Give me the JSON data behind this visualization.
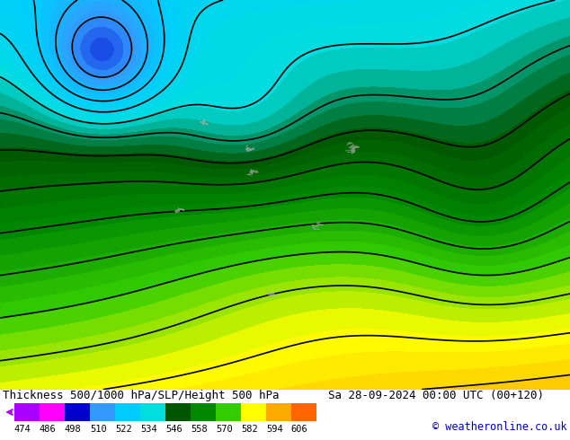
{
  "title_left": "Thickness 500/1000 hPa/SLP/Height 500 hPa",
  "title_right": "Sa 28-09-2024 00:00 UTC (00+120)",
  "copyright": "© weatheronline.co.uk",
  "colorbar_values": [
    474,
    486,
    498,
    510,
    522,
    534,
    546,
    558,
    570,
    582,
    594,
    606
  ],
  "colorbar_colors": [
    "#AA00FF",
    "#FF00FF",
    "#0000CC",
    "#3399FF",
    "#00CCFF",
    "#00DDDD",
    "#005500",
    "#008800",
    "#33CC00",
    "#FFFF00",
    "#FFAA00",
    "#FF6600"
  ],
  "fig_width": 6.34,
  "fig_height": 4.9,
  "dpi": 100,
  "title_fontsize": 9.0,
  "copyright_fontsize": 8.5,
  "tick_fontsize": 7.5
}
